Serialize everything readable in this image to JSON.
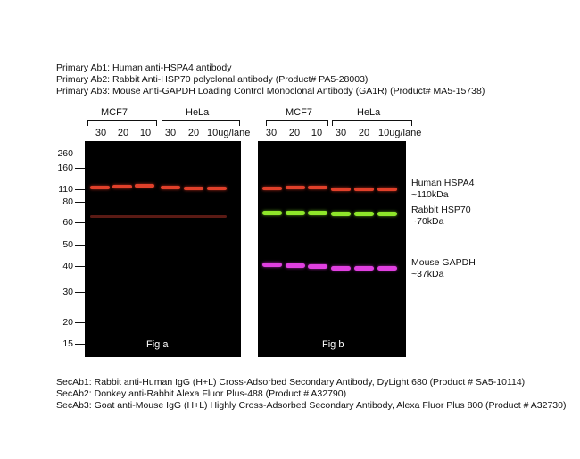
{
  "primary_ab": [
    "Primary Ab1: Human anti-HSPA4 antibody",
    "Primary Ab2: Rabbit Anti-HSP70 polyclonal antibody (Product# PA5-28003)",
    "Primary Ab3: Mouse Anti-GAPDH  Loading Control Monoclonal Antibody (GA1R) (Product# MA5-15738)"
  ],
  "groups": [
    "MCF7",
    "HeLa",
    "MCF7",
    "HeLa"
  ],
  "lanes_a": [
    "30",
    "20",
    "10",
    "30",
    "20",
    "10ug/lane"
  ],
  "lanes_b": [
    "30",
    "20",
    "10",
    "30",
    "20",
    "10ug/lane"
  ],
  "markers": [
    "260",
    "160",
    "110",
    "80",
    "60",
    "50",
    "40",
    "30",
    "20",
    "15"
  ],
  "fig_a_label": "Fig a",
  "fig_b_label": "Fig b",
  "band_labels": [
    {
      "line1": "Human HSPA4",
      "line2": "~110kDa"
    },
    {
      "line1": "Rabbit HSP70",
      "line2": "~70kDa"
    },
    {
      "line1": "Mouse GAPDH",
      "line2": "~37kDa"
    }
  ],
  "secondary_ab": [
    "SecAb1: Rabbit anti-Human IgG (H+L) Cross-Adsorbed Secondary Antibody, DyLight 680 (Product # SA5-10114)",
    "SecAb2: Donkey anti-Rabbit Alexa Fluor Plus-488 (Product # A32790)",
    "SecAb3: Goat anti-Mouse IgG (H+L) Highly Cross-Adsorbed Secondary Antibody, Alexa Fluor Plus 800 (Product # A32730)"
  ],
  "colors": {
    "hspa4_band": "#e0402a",
    "hsp70_band": "#8ee62a",
    "gapdh_band": "#e040e0",
    "faint_band": "#5a1a14"
  }
}
